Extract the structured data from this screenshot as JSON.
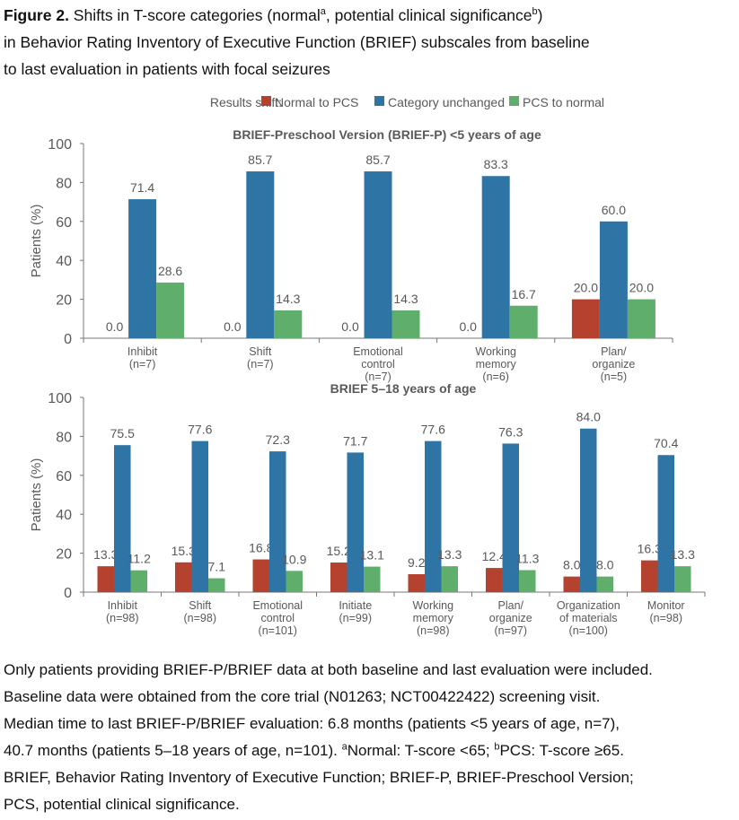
{
  "caption": {
    "label": "Figure 2.",
    "line1a": " Shifts in T-score categories (normal",
    "sup_a": "a",
    "line1b": ", potential clinical significance",
    "sup_b": "b",
    "line1c": ")",
    "line2": "in Behavior Rating Inventory of Executive Function (BRIEF) subscales from baseline",
    "line3": "to last evaluation in patients with focal seizures"
  },
  "legend": {
    "title": "Results shift:",
    "placement": "top",
    "items": [
      {
        "label": "Normal to PCS",
        "color": "#b5412f"
      },
      {
        "label": "Category unchanged",
        "color": "#2e75a6"
      },
      {
        "label": "PCS to normal",
        "color": "#5fae6b"
      }
    ]
  },
  "chart_data": [
    {
      "type": "bar",
      "title": "BRIEF-Preschool Version (BRIEF-P) <5 years of age",
      "ylabel": "Patients (%)",
      "ylim": [
        0,
        100
      ],
      "yticks": [
        0,
        20,
        40,
        60,
        80,
        100
      ],
      "categories": [
        [
          "Inhibit",
          "(n=7)"
        ],
        [
          "Shift",
          "(n=7)"
        ],
        [
          "Emotional",
          "control",
          "(n=7)"
        ],
        [
          "Working",
          "memory",
          "(n=6)"
        ],
        [
          "Plan/",
          "organize",
          "(n=5)"
        ]
      ],
      "series": [
        {
          "name": "Normal to PCS",
          "values": [
            0.0,
            0.0,
            0.0,
            0.0,
            20.0
          ]
        },
        {
          "name": "Category unchanged",
          "values": [
            71.4,
            85.7,
            85.7,
            83.3,
            60.0
          ]
        },
        {
          "name": "PCS to normal",
          "values": [
            28.6,
            14.3,
            14.3,
            16.7,
            20.0
          ]
        }
      ]
    },
    {
      "type": "bar",
      "title": "BRIEF 5–18 years of age",
      "ylabel": "Patients (%)",
      "ylim": [
        0,
        100
      ],
      "yticks": [
        0,
        20,
        40,
        60,
        80,
        100
      ],
      "categories": [
        [
          "Inhibit",
          "(n=98)"
        ],
        [
          "Shift",
          "(n=98)"
        ],
        [
          "Emotional",
          "control",
          "(n=101)"
        ],
        [
          "Initiate",
          "(n=99)"
        ],
        [
          "Working",
          "memory",
          "(n=98)"
        ],
        [
          "Plan/",
          "organize",
          "(n=97)"
        ],
        [
          "Organization",
          "of materials",
          "(n=100)"
        ],
        [
          "Monitor",
          "(n=98)"
        ]
      ],
      "series": [
        {
          "name": "Normal to PCS",
          "values": [
            13.3,
            15.3,
            16.8,
            15.2,
            9.2,
            12.4,
            8.0,
            16.3
          ]
        },
        {
          "name": "Category unchanged",
          "values": [
            75.5,
            77.6,
            72.3,
            71.7,
            77.6,
            76.3,
            84.0,
            70.4
          ]
        },
        {
          "name": "PCS to normal",
          "values": [
            11.2,
            7.1,
            10.9,
            13.1,
            13.3,
            11.3,
            8.0,
            13.3
          ]
        }
      ]
    }
  ],
  "footnote": {
    "l1": "Only patients providing BRIEF-P/BRIEF data at both baseline and last evaluation were included.",
    "l2": "Baseline data were obtained from the core trial (N01263; NCT00422422) screening visit.",
    "l3": "Median time to last BRIEF-P/BRIEF evaluation: 6.8 months (patients <5 years of age, n=7),",
    "l4a": "40.7 months (patients 5–18 years of age, n=101). ",
    "sup_a": "a",
    "l4b": "Normal: T-score <65; ",
    "sup_b": "b",
    "l4c": "PCS: T-score ≥65.",
    "l5": "BRIEF, Behavior Rating Inventory of Executive Function; BRIEF-P, BRIEF-Preschool Version;",
    "l6": "PCS, potential clinical significance."
  }
}
